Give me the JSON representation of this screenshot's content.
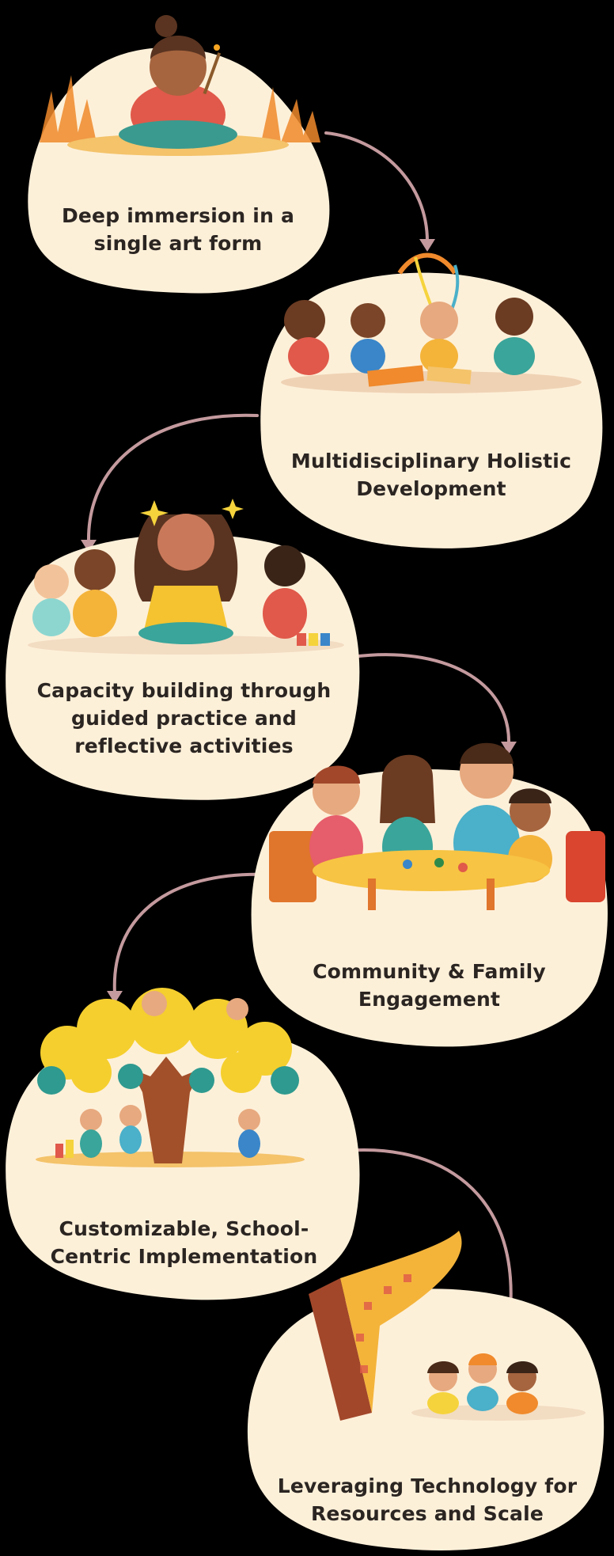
{
  "colors": {
    "background": "#000000",
    "card": "#fdf0d9",
    "connector": "#c49a9e",
    "text": "#2b2522"
  },
  "steps": [
    {
      "line1": "Deep immersion in a",
      "line2": "single art form",
      "illustration": "girl-painting-illustration"
    },
    {
      "line1": "Multidisciplinary Holistic",
      "line2": "Development",
      "illustration": "children-crafting-illustration"
    },
    {
      "line1": "Capacity building through",
      "line2": "guided practice and",
      "line3": "reflective activities",
      "illustration": "teacher-with-children-illustration"
    },
    {
      "line1": "Community & Family",
      "line2": "Engagement",
      "illustration": "family-table-illustration"
    },
    {
      "line1": "Customizable, School-",
      "line2": "Centric Implementation",
      "illustration": "tree-with-children-illustration"
    },
    {
      "line1": "Leveraging Technology for",
      "line2": "Resources and Scale",
      "illustration": "digital-book-illustration"
    }
  ]
}
